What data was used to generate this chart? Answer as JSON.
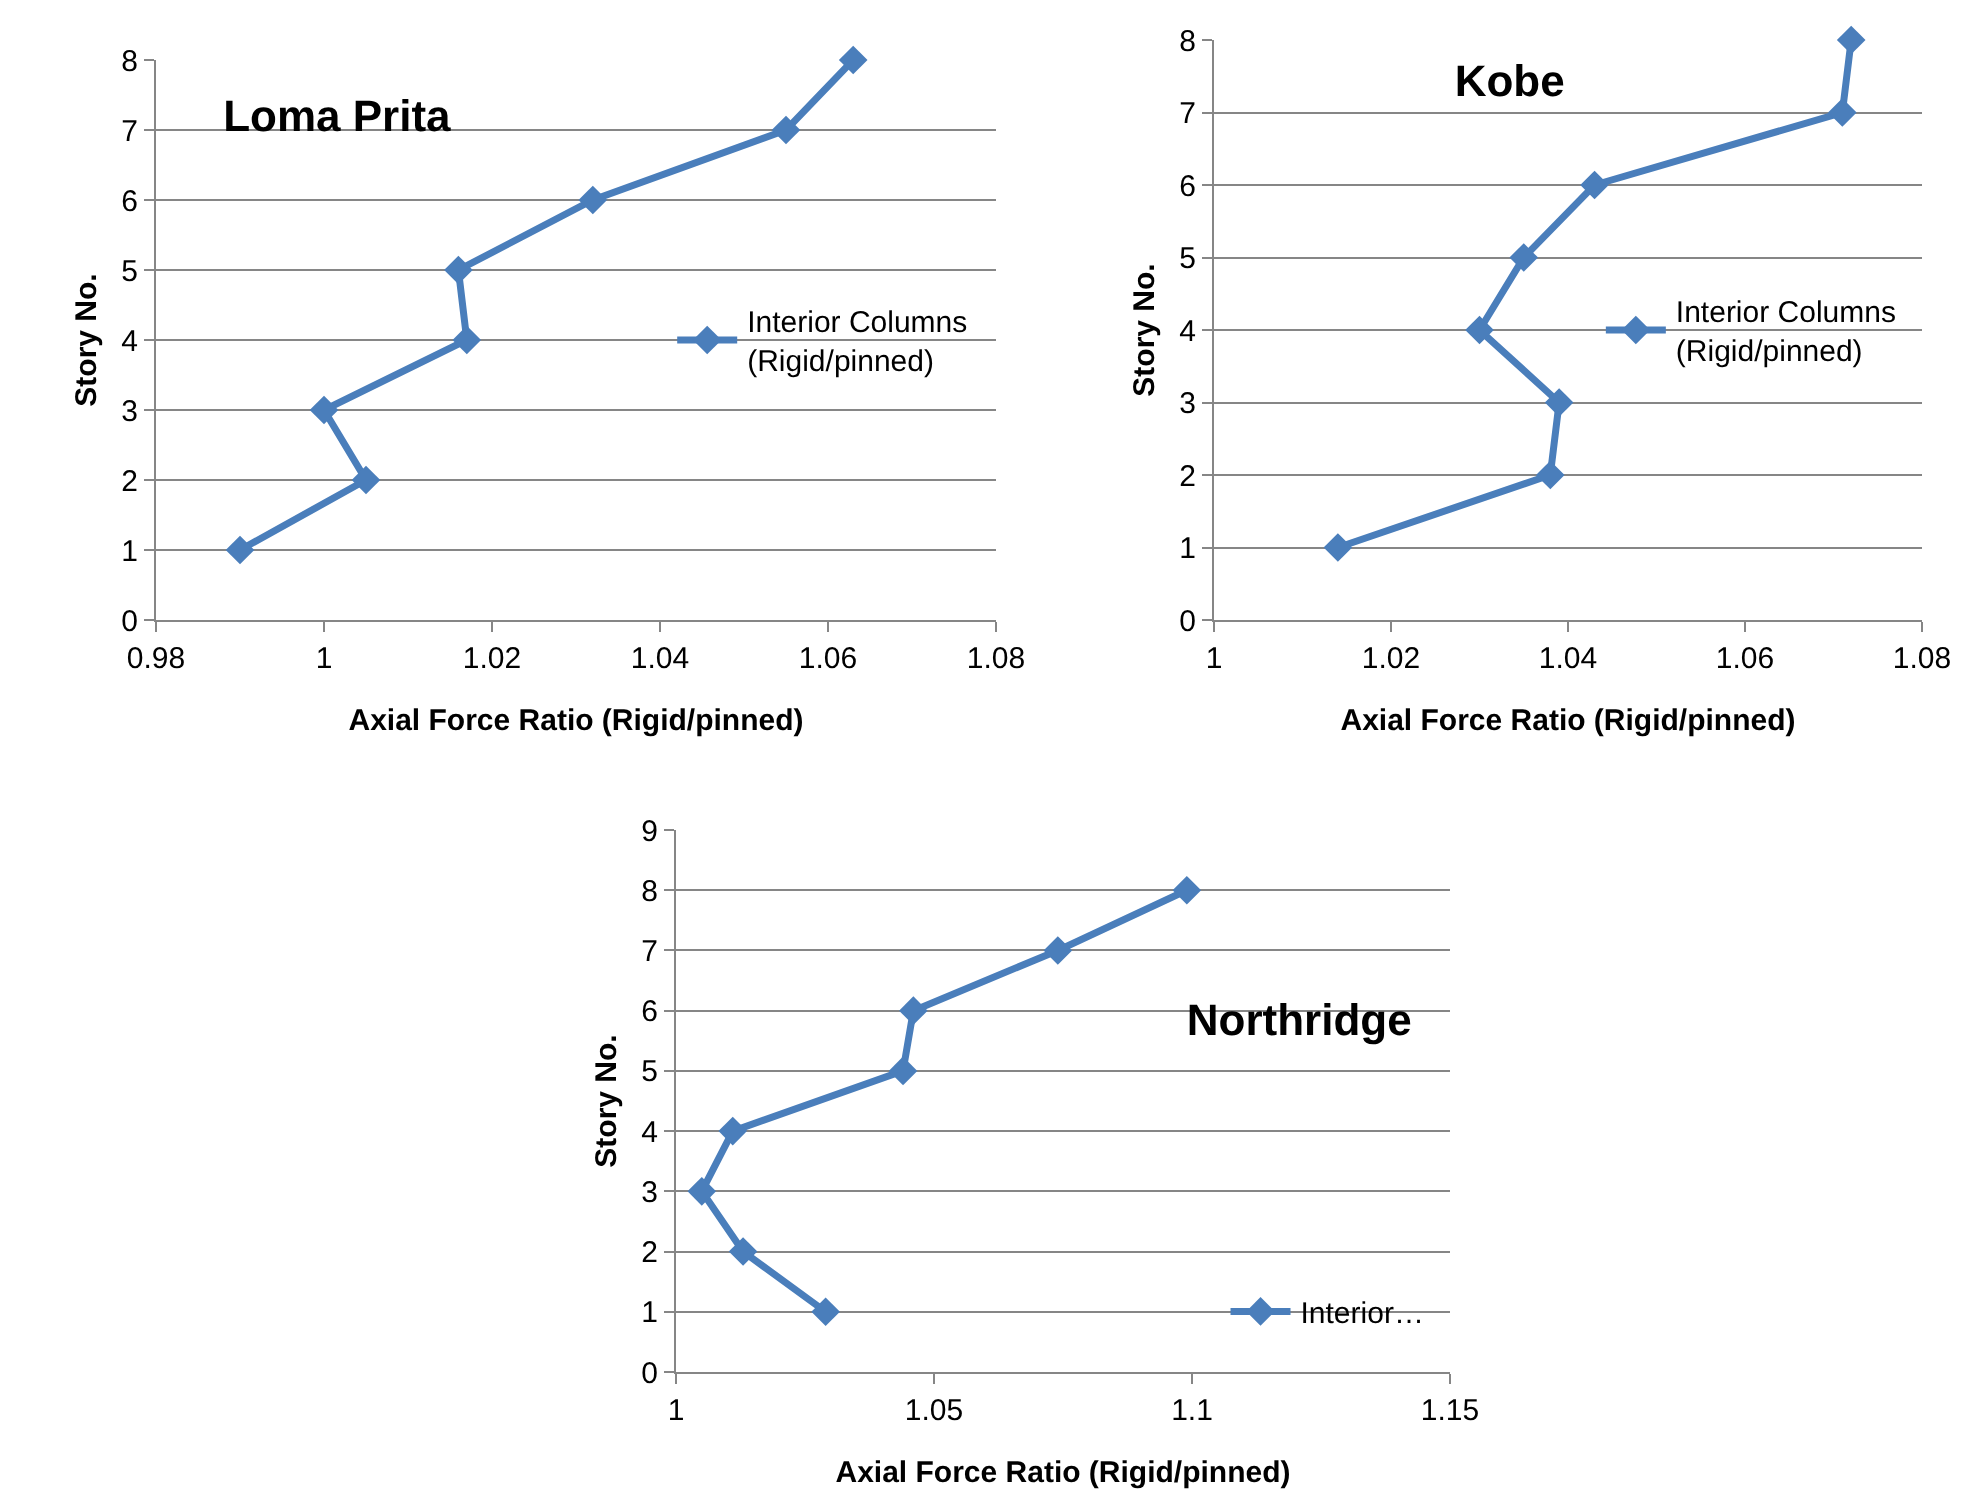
{
  "chart_data": [
    {
      "type": "line",
      "title": "Loma Prita",
      "xlabel": "Axial Force Ratio (Rigid/pinned)",
      "ylabel": "Story No.",
      "x": [
        0.99,
        1.005,
        1.0,
        1.017,
        1.016,
        1.032,
        1.055,
        1.063
      ],
      "series": [
        {
          "name": "Interior Columns (Rigid/pinned)",
          "color": "#4a7ebb",
          "values": [
            1,
            2,
            3,
            4,
            5,
            6,
            7,
            8
          ]
        }
      ],
      "xlim": [
        0.98,
        1.08
      ],
      "xticks": [
        0.98,
        1,
        1.02,
        1.04,
        1.06,
        1.08
      ],
      "ylim": [
        0,
        8
      ],
      "yticks": [
        0,
        1,
        2,
        3,
        4,
        5,
        6,
        7,
        8
      ],
      "grid": "y",
      "legend": "right",
      "marker": "diamond"
    },
    {
      "type": "line",
      "title": "Kobe",
      "xlabel": "Axial Force Ratio (Rigid/pinned)",
      "ylabel": "Story No.",
      "x": [
        1.014,
        1.038,
        1.039,
        1.03,
        1.035,
        1.043,
        1.071,
        1.072
      ],
      "series": [
        {
          "name": "Interior Columns (Rigid/pinned)",
          "color": "#4a7ebb",
          "values": [
            1,
            2,
            3,
            4,
            5,
            6,
            7,
            8
          ]
        }
      ],
      "xlim": [
        1,
        1.08
      ],
      "xticks": [
        1,
        1.02,
        1.04,
        1.06,
        1.08
      ],
      "ylim": [
        0,
        8
      ],
      "yticks": [
        0,
        1,
        2,
        3,
        4,
        5,
        6,
        7,
        8
      ],
      "grid": "y",
      "legend": "right",
      "marker": "diamond"
    },
    {
      "type": "line",
      "title": "Northridge",
      "xlabel": "Axial Force Ratio (Rigid/pinned)",
      "ylabel": "Story No.",
      "x": [
        1.029,
        1.013,
        1.005,
        1.011,
        1.044,
        1.046,
        1.074,
        1.099
      ],
      "series": [
        {
          "name": "Interior…",
          "color": "#4a7ebb",
          "values": [
            1,
            2,
            3,
            4,
            5,
            6,
            7,
            8
          ]
        }
      ],
      "xlim": [
        1,
        1.15
      ],
      "xticks": [
        1,
        1.05,
        1.1,
        1.15
      ],
      "ylim": [
        0,
        9
      ],
      "yticks": [
        0,
        1,
        2,
        3,
        4,
        5,
        6,
        7,
        8,
        9
      ],
      "grid": "y",
      "legend": "bottom right",
      "marker": "diamond"
    }
  ]
}
